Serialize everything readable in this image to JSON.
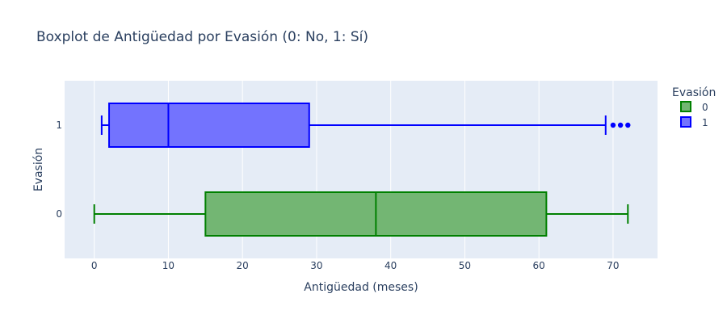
{
  "chart_data": {
    "type": "boxplot",
    "title": "Boxplot de Antigüedad por Evasión (0: No, 1: Sí)",
    "xlabel": "Antigüedad (meses)",
    "ylabel": "Evasión",
    "xlim": [
      -4,
      76
    ],
    "xticks": [
      0,
      10,
      20,
      30,
      40,
      50,
      60,
      70
    ],
    "categories": [
      "0",
      "1"
    ],
    "orientation": "horizontal",
    "grid": true,
    "legend": {
      "title": "Evasión",
      "position": "top-right"
    },
    "series": [
      {
        "name": "0",
        "category": "0",
        "color": "#008000",
        "fill": "#73b673",
        "min": 0,
        "q1": 15,
        "median": 38,
        "q3": 61,
        "max": 72,
        "outliers": []
      },
      {
        "name": "1",
        "category": "1",
        "color": "#0000ff",
        "fill": "#7373fe",
        "min": 1,
        "q1": 2,
        "median": 10,
        "q3": 29,
        "max": 69,
        "outliers": [
          70,
          71,
          72
        ]
      }
    ]
  }
}
